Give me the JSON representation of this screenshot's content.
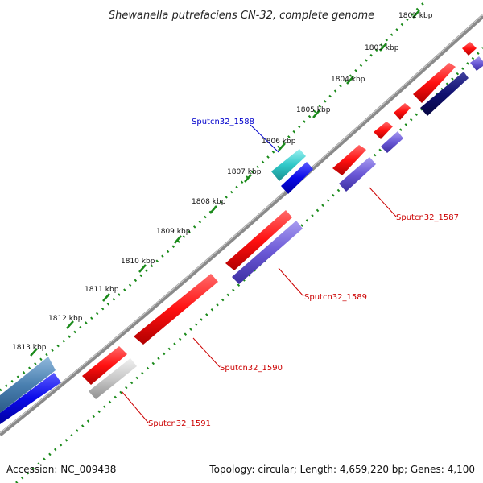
{
  "title": "Shewanella putrefaciens CN-32, complete genome",
  "footer": {
    "accession": "Accession: NC_009438",
    "topology": "Topology: circular; Length: 4,659,220 bp; Genes: 4,100"
  },
  "colors": {
    "backbone": "#7f7f7f",
    "tick": "#1a8a1a",
    "forward_gene": "#ff1a1a",
    "reverse_gene_a": "#7060d8",
    "reverse_gene_b": "#1010e0",
    "navy_gene": "#101070",
    "cyan_gene": "#30c8c8",
    "steel_gene": "#4a80b0",
    "gray_gene": "#c8c8c8"
  },
  "scale": {
    "ticks": [
      {
        "text": "1802 kbp"
      },
      {
        "text": "1803 kbp"
      },
      {
        "text": "1804 kbp"
      },
      {
        "text": "1805 kbp"
      },
      {
        "text": "1806 kbp"
      },
      {
        "text": "1807 kbp"
      },
      {
        "text": "1808 kbp"
      },
      {
        "text": "1809 kbp"
      },
      {
        "text": "1810 kbp"
      },
      {
        "text": "1811 kbp"
      },
      {
        "text": "1812 kbp"
      },
      {
        "text": "1813 kbp"
      }
    ]
  },
  "gene_labels": {
    "g1587": "Sputcn32_1587",
    "g1588": "Sputcn32_1588",
    "g1589": "Sputcn32_1589",
    "g1590": "Sputcn32_1590",
    "g1591": "Sputcn32_1591"
  }
}
